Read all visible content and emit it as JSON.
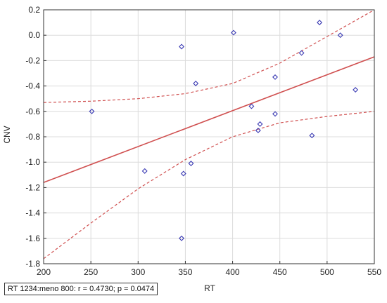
{
  "stats": {
    "legend_text": "RT 1234:meno 800:   r = 0.4730; p = 0.0474"
  },
  "chart_data": {
    "type": "scatter",
    "xlabel": "RT",
    "ylabel": "CNV",
    "xlim": [
      200,
      550
    ],
    "ylim": [
      -1.8,
      0.2
    ],
    "xticks": [
      200,
      250,
      300,
      350,
      400,
      450,
      500,
      550
    ],
    "yticks": [
      0.2,
      0.0,
      -0.2,
      -0.4,
      -0.6,
      -0.8,
      -1.0,
      -1.2,
      -1.4,
      -1.6,
      -1.8
    ],
    "grid": true,
    "points": {
      "x": [
        251,
        307,
        346,
        346,
        348,
        356,
        361,
        401,
        420,
        427,
        429,
        445,
        445,
        473,
        484,
        492,
        514,
        530
      ],
      "y": [
        -0.6,
        -1.07,
        -0.09,
        -1.6,
        -1.09,
        -1.01,
        -0.38,
        0.02,
        -0.56,
        -0.75,
        -0.7,
        -0.33,
        -0.62,
        -0.14,
        -0.79,
        0.1,
        0.0,
        -0.43
      ]
    },
    "fit_line": {
      "x": [
        200,
        550
      ],
      "y": [
        -1.16,
        -0.17
      ]
    },
    "confidence_upper": {
      "x": [
        200,
        250,
        300,
        350,
        400,
        450,
        500,
        550
      ],
      "y": [
        -0.53,
        -0.52,
        -0.5,
        -0.46,
        -0.38,
        -0.22,
        -0.01,
        0.3
      ]
    },
    "confidence_lower": {
      "x": [
        200,
        250,
        300,
        350,
        400,
        450,
        500,
        550
      ],
      "y": [
        -1.76,
        -1.48,
        -1.21,
        -0.98,
        -0.8,
        -0.69,
        -0.64,
        -0.6
      ]
    },
    "colors": {
      "points": "#3c3cb4",
      "fit": "#d05050",
      "confidence": "#d05050",
      "grid": "#dcdcdc",
      "axis": "#333333"
    }
  }
}
